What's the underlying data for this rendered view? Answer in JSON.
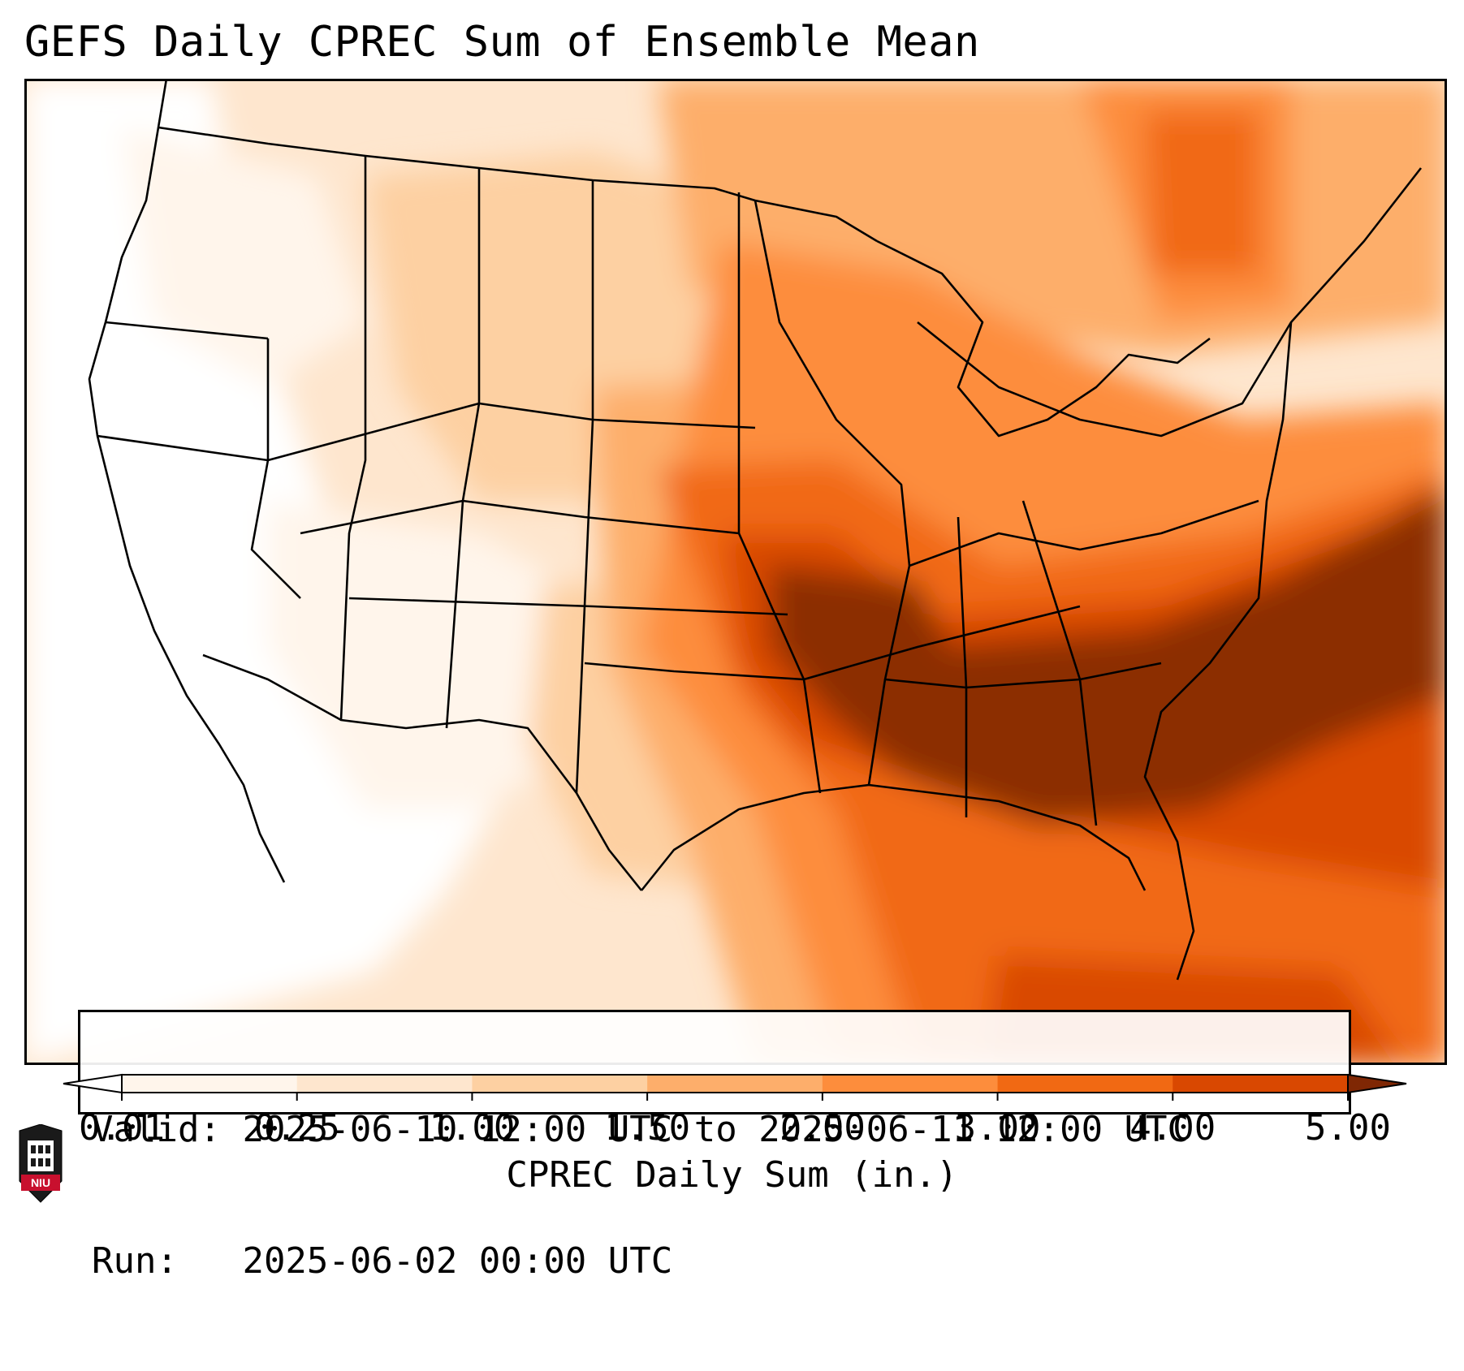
{
  "title": "GEFS Daily CPREC Sum of Ensemble Mean",
  "info": {
    "valid_label": "Valid:",
    "valid_value": "2025-06-10 12:00 UTC to 2025-06-11 12:00 UTC",
    "run_label": "Run:",
    "run_value": "2025-06-02 00:00 UTC"
  },
  "colorbar": {
    "label": "CPREC Daily Sum (in.)",
    "ticks": [
      "0.01",
      "0.25",
      "1.00",
      "1.50",
      "2.00",
      "3.00",
      "4.00",
      "5.00"
    ],
    "colors": [
      "#fff5eb",
      "#fee6ce",
      "#fdd0a2",
      "#fdae6b",
      "#fd8d3c",
      "#f16913",
      "#d94801",
      "#8c2d04"
    ],
    "under_color": "#ffffff",
    "over_color": "#7f2704",
    "extend": "both"
  },
  "logo": {
    "text": "NIU",
    "shield_color": "#1a1a1a",
    "accent_color": "#c8102e"
  }
}
